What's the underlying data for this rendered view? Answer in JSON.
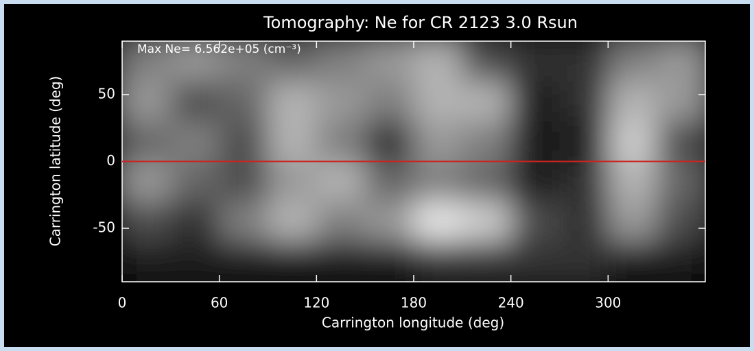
{
  "chart_data": {
    "type": "image",
    "title": "Tomography:  Ne for CR 2123 3.0 Rsun",
    "annotation": "Max Ne= 6.562e+05 (cm⁻³)",
    "xlabel": "Carrington longitude (deg)",
    "ylabel": "Carrington latitude (deg)",
    "xlim": [
      0,
      360
    ],
    "ylim": [
      -90,
      90
    ],
    "xticks": [
      0,
      60,
      120,
      180,
      240,
      300
    ],
    "yticks": [
      -50,
      0,
      50
    ],
    "hline": 0,
    "hline_color": "#d02020",
    "z": [
      [
        0.5,
        0.6,
        0.5,
        0.4,
        0.5,
        0.6,
        0.7,
        0.3,
        0.2,
        0.2,
        0.5,
        0.6
      ],
      [
        0.6,
        0.3,
        0.4,
        0.7,
        0.6,
        0.5,
        0.7,
        0.7,
        0.1,
        0.2,
        0.7,
        0.6
      ],
      [
        0.4,
        0.5,
        0.3,
        0.7,
        0.5,
        0.2,
        0.6,
        0.5,
        0.1,
        0.1,
        0.8,
        0.3
      ],
      [
        0.6,
        0.4,
        0.3,
        0.6,
        0.7,
        0.4,
        0.5,
        0.4,
        0.1,
        0.2,
        0.7,
        0.4
      ],
      [
        0.3,
        0.2,
        0.5,
        0.7,
        0.5,
        0.6,
        0.9,
        0.8,
        0.3,
        0.2,
        0.6,
        0.3
      ],
      [
        0.1,
        0.1,
        0.1,
        0.1,
        0.1,
        0.1,
        0.2,
        0.2,
        0.2,
        0.2,
        0.1,
        0.1
      ]
    ]
  }
}
